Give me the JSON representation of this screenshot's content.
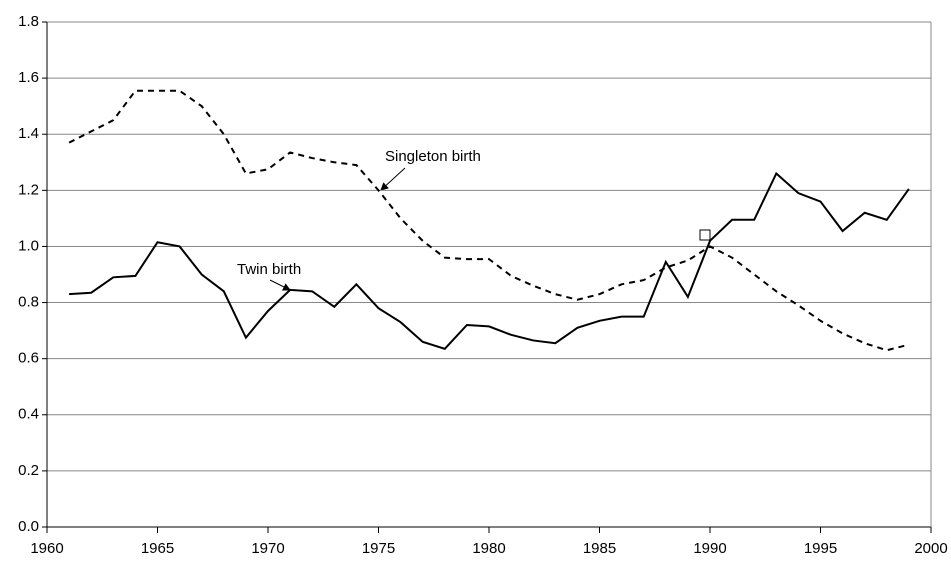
{
  "chart_data": {
    "type": "line",
    "x": [
      1961,
      1962,
      1963,
      1964,
      1965,
      1966,
      1967,
      1968,
      1969,
      1970,
      1971,
      1972,
      1973,
      1974,
      1975,
      1976,
      1977,
      1978,
      1979,
      1980,
      1981,
      1982,
      1983,
      1984,
      1985,
      1986,
      1987,
      1988,
      1989,
      1990,
      1991,
      1992,
      1993,
      1994,
      1995,
      1996,
      1997,
      1998,
      1999
    ],
    "series": [
      {
        "name": "Twin birth",
        "color": "#000000",
        "style": "solid",
        "values": [
          0.83,
          0.835,
          0.89,
          0.895,
          1.015,
          1.0,
          0.9,
          0.84,
          0.675,
          0.77,
          0.845,
          0.84,
          0.785,
          0.865,
          0.78,
          0.73,
          0.66,
          0.635,
          0.72,
          0.715,
          0.685,
          0.665,
          0.655,
          0.71,
          0.735,
          0.75,
          0.75,
          0.945,
          0.82,
          1.02,
          1.095,
          1.095,
          1.26,
          1.19,
          1.16,
          1.055,
          1.12,
          1.095,
          1.205
        ]
      },
      {
        "name": "Singleton birth",
        "color": "#000000",
        "style": "dashed",
        "values": [
          1.37,
          1.41,
          1.45,
          1.555,
          1.555,
          1.555,
          1.5,
          1.4,
          1.26,
          1.275,
          1.335,
          1.315,
          1.3,
          1.29,
          1.2,
          1.1,
          1.02,
          0.96,
          0.955,
          0.955,
          0.895,
          0.86,
          0.83,
          0.81,
          0.83,
          0.865,
          0.88,
          0.925,
          0.95,
          1.0,
          0.96,
          0.9,
          0.84,
          0.79,
          0.735,
          0.69,
          0.655,
          0.63,
          0.65
        ]
      }
    ],
    "xlim": [
      1960,
      2000
    ],
    "xticks": [
      1960,
      1965,
      1970,
      1975,
      1980,
      1985,
      1990,
      1995,
      2000
    ],
    "ylim": [
      0,
      1.8
    ],
    "yticks": [
      {
        "value": 0,
        "label": "0.0"
      },
      0.2,
      0.4,
      0.6,
      0.8,
      {
        "value": 1,
        "label": "1.0"
      },
      1.2,
      1.4,
      1.6,
      1.8
    ],
    "grid": true
  }
}
